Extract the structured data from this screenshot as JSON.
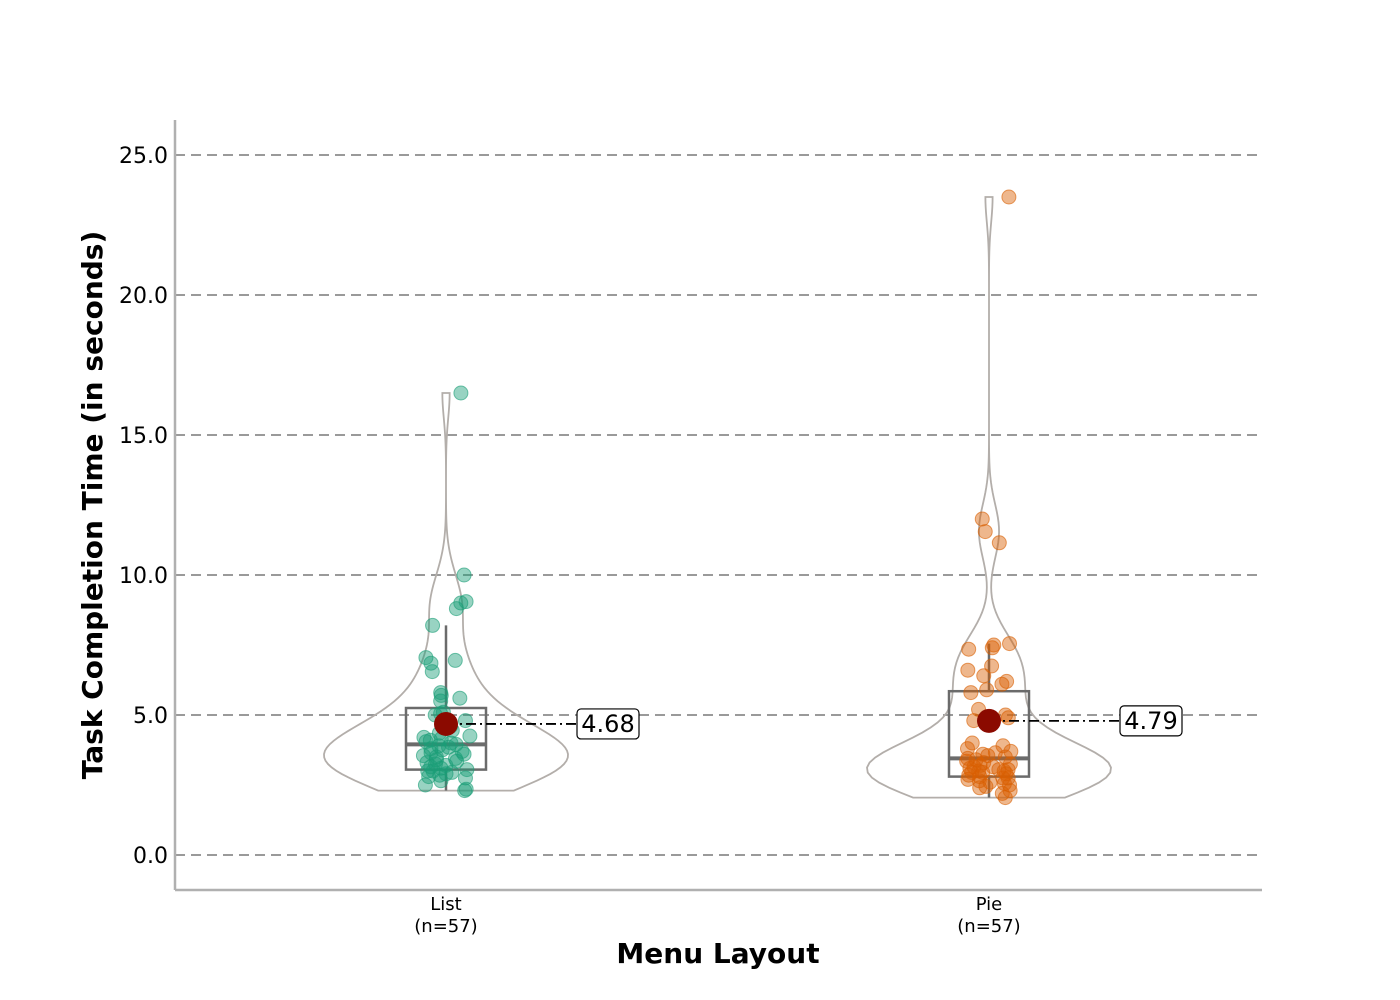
{
  "chart_data": {
    "type": "violin",
    "xlabel": "Menu Layout",
    "ylabel": "Task Completion Time (in seconds)",
    "ylim": [
      -1.25,
      26.25
    ],
    "yticks": [
      "0.0",
      "5.0",
      "10.0",
      "15.0",
      "20.0",
      "25.0"
    ],
    "grid": "horizontal-dashed",
    "groups": [
      {
        "name": "List",
        "n_label": "(n=57)",
        "color": "#1b9e77",
        "mean": 4.68,
        "mean_label": "4.68",
        "box": {
          "whisker_low": 2.3,
          "q1": 3.05,
          "median": 3.95,
          "q3": 5.25,
          "whisker_high": 8.2
        },
        "violin_range": [
          2.3,
          16.5
        ],
        "points": [
          2.3,
          2.35,
          2.5,
          2.65,
          2.75,
          2.8,
          2.85,
          2.9,
          2.95,
          3.0,
          3.0,
          3.05,
          3.1,
          3.15,
          3.2,
          3.25,
          3.3,
          3.35,
          3.4,
          3.5,
          3.55,
          3.6,
          3.65,
          3.7,
          3.75,
          3.8,
          3.85,
          3.9,
          3.95,
          4.0,
          4.05,
          4.1,
          4.15,
          4.2,
          4.25,
          4.35,
          4.45,
          4.6,
          4.8,
          5.0,
          5.05,
          5.1,
          5.5,
          5.6,
          5.7,
          5.8,
          6.55,
          6.85,
          6.95,
          7.05,
          8.2,
          8.8,
          9.0,
          9.05,
          10.0,
          16.5,
          3.45
        ]
      },
      {
        "name": "Pie",
        "n_label": "(n=57)",
        "color": "#d95f02",
        "mean": 4.79,
        "mean_label": "4.79",
        "box": {
          "whisker_low": 2.05,
          "q1": 2.8,
          "median": 3.45,
          "q3": 5.85,
          "whisker_high": 7.55
        },
        "violin_range": [
          2.05,
          23.5
        ],
        "points": [
          2.05,
          2.2,
          2.3,
          2.4,
          2.5,
          2.55,
          2.6,
          2.65,
          2.7,
          2.75,
          2.8,
          2.85,
          2.9,
          2.95,
          3.0,
          3.0,
          3.05,
          3.1,
          3.15,
          3.2,
          3.25,
          3.3,
          3.35,
          3.4,
          3.5,
          3.55,
          3.6,
          3.7,
          3.8,
          3.9,
          4.0,
          4.8,
          4.9,
          5.0,
          5.2,
          5.8,
          5.9,
          6.1,
          6.2,
          6.4,
          6.6,
          6.75,
          7.35,
          7.4,
          7.5,
          7.55,
          11.15,
          11.55,
          12.0,
          23.5,
          2.45,
          2.75,
          3.15,
          3.45,
          3.65,
          2.95,
          3.05
        ]
      }
    ]
  }
}
